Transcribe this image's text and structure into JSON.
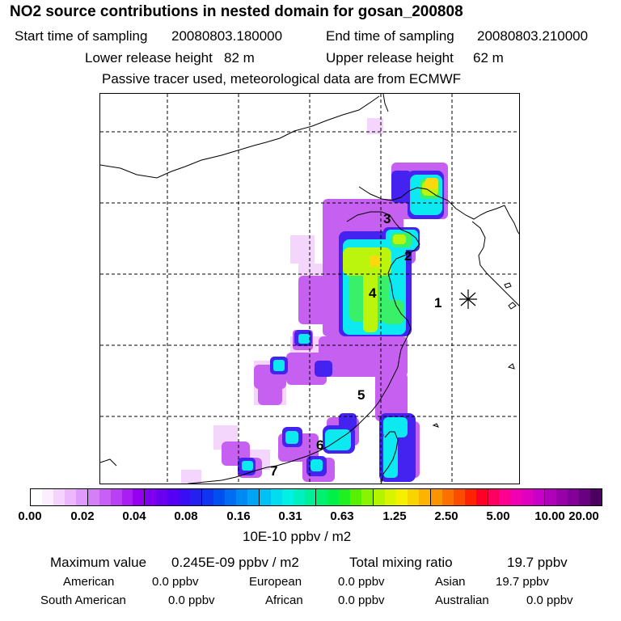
{
  "title": "NO2 source contributions in nested domain for gosan_200808",
  "sampling": {
    "start_label": "Start time of sampling",
    "start_value": "20080803.180000",
    "end_label": "End time of sampling",
    "end_value": "20080803.210000"
  },
  "release": {
    "lower_label": "Lower release height",
    "lower_value": "82 m",
    "upper_label": "Upper release height",
    "upper_value": "62 m"
  },
  "subtitle": "Passive tracer used, meteorological data are from ECMWF",
  "map": {
    "region_labels": [
      "1",
      "2",
      "3",
      "4",
      "5",
      "6",
      "7"
    ],
    "receptor_marker": "receptor-star"
  },
  "colorbar": {
    "ticks": [
      "0.00",
      "0.02",
      "0.04",
      "0.08",
      "0.16",
      "0.31",
      "0.63",
      "1.25",
      "2.50",
      "5.00",
      "10.00",
      "20.00"
    ],
    "colors": [
      "#ffffff",
      "#fbeefe",
      "#f4d4fd",
      "#ecb8fb",
      "#e09afb",
      "#d47ef7",
      "#c860f6",
      "#b941f5",
      "#a81ef3",
      "#9600f0",
      "#7f00f0",
      "#6a00f0",
      "#5500f4",
      "#3a0ef4",
      "#2320f0",
      "#1034f0",
      "#0050f0",
      "#006cf4",
      "#0088f4",
      "#00a4f4",
      "#00c0f4",
      "#00dcf0",
      "#00f0e4",
      "#00f0c0",
      "#00f098",
      "#00f070",
      "#00f048",
      "#20f020",
      "#58f000",
      "#88f400",
      "#b4f400",
      "#d8f400",
      "#f4f000",
      "#f8d400",
      "#fcb400",
      "#fc9400",
      "#fc7000",
      "#fc4c00",
      "#fc2400",
      "#fc0028",
      "#fc0060",
      "#fc0090",
      "#f000b0",
      "#e000c0",
      "#c800c8",
      "#b000b8",
      "#9800a8",
      "#800098",
      "#680080",
      "#4c0060"
    ],
    "unit": "10E-10 ppbv / m2"
  },
  "stats": {
    "max_label": "Maximum value",
    "max_value": "0.245E-09 ppbv / m2",
    "total_label": "Total mixing ratio",
    "total_value": "19.7 ppbv",
    "regions": [
      {
        "name": "American",
        "value": "0.0 ppbv"
      },
      {
        "name": "European",
        "value": "0.0 ppbv"
      },
      {
        "name": "Asian",
        "value": "19.7 ppbv"
      },
      {
        "name": "South American",
        "value": "0.0 ppbv"
      },
      {
        "name": "African",
        "value": "0.0 ppbv"
      },
      {
        "name": "Australian",
        "value": "0.0 ppbv"
      }
    ]
  }
}
